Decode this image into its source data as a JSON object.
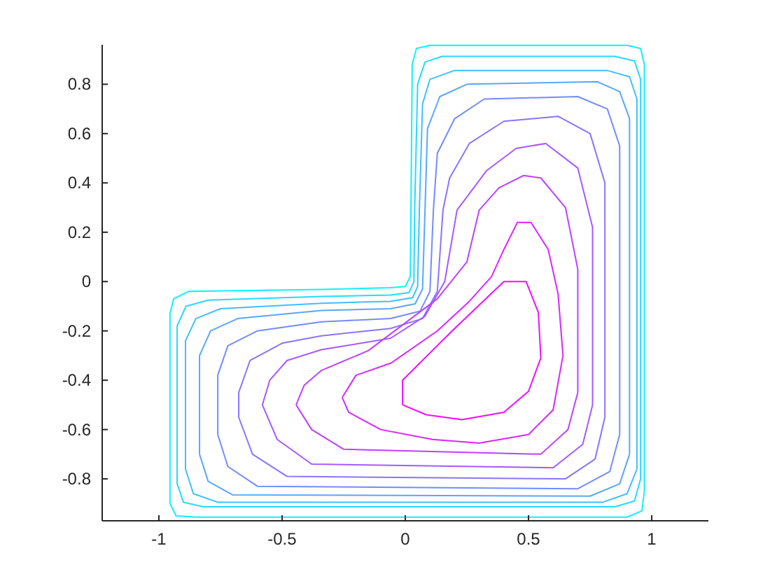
{
  "chart_data": {
    "type": "line",
    "xlim": [
      -1.23,
      1.23
    ],
    "ylim": [
      -0.97,
      0.96
    ],
    "xticks": [
      -1,
      -0.5,
      0,
      0.5,
      1
    ],
    "yticks": [
      -0.8,
      -0.6,
      -0.4,
      -0.2,
      0,
      0.2,
      0.4,
      0.6,
      0.8
    ],
    "series": [
      {
        "color": "#0df2ff",
        "x": [
          -0.955,
          -0.93,
          -0.85,
          0.9,
          0.96,
          0.97,
          null,
          -0.955,
          -0.955,
          -0.94,
          -0.88,
          -0.34,
          -0.06,
          0.0,
          0.02,
          0.023,
          0.028,
          0.045,
          0.1,
          0.9,
          0.955,
          0.97,
          0.97
        ],
        "values": [
          -0.9,
          -0.95,
          -0.955,
          -0.955,
          -0.93,
          -0.85,
          null,
          -0.9,
          -0.13,
          -0.07,
          -0.04,
          -0.032,
          -0.025,
          -0.02,
          0.02,
          0.29,
          0.88,
          0.945,
          0.958,
          0.958,
          0.945,
          0.88,
          -0.85
        ]
      },
      {
        "color": "#26d9ff",
        "x": [
          -0.926,
          -0.9,
          -0.82,
          0.85,
          0.93,
          0.955,
          null,
          -0.926,
          -0.926,
          -0.89,
          -0.8,
          -0.34,
          -0.06,
          0.015,
          0.035,
          0.038,
          0.05,
          0.08,
          0.15,
          0.85,
          0.93,
          0.955,
          0.955
        ],
        "values": [
          -0.82,
          -0.895,
          -0.913,
          -0.913,
          -0.89,
          -0.8,
          null,
          -0.82,
          -0.18,
          -0.1,
          -0.075,
          -0.06,
          -0.055,
          -0.045,
          0.0,
          0.29,
          0.8,
          0.89,
          0.913,
          0.913,
          0.895,
          0.82,
          -0.8
        ]
      },
      {
        "color": "#40bfff",
        "x": [
          -0.892,
          -0.86,
          -0.76,
          0.8,
          0.9,
          0.94,
          null,
          -0.892,
          -0.892,
          -0.85,
          -0.75,
          -0.34,
          -0.06,
          0.03,
          0.05,
          0.057,
          0.07,
          0.1,
          0.2,
          0.82,
          0.91,
          0.94,
          0.94
        ],
        "values": [
          -0.76,
          -0.86,
          -0.895,
          -0.895,
          -0.86,
          -0.76,
          null,
          -0.76,
          -0.24,
          -0.15,
          -0.11,
          -0.088,
          -0.08,
          -0.065,
          -0.02,
          0.29,
          0.72,
          0.82,
          0.856,
          0.856,
          0.83,
          0.74,
          -0.76
        ]
      },
      {
        "color": "#59a6ff",
        "x": [
          -0.835,
          -0.8,
          -0.7,
          0.75,
          0.87,
          0.91,
          null,
          -0.835,
          -0.835,
          -0.79,
          -0.68,
          -0.34,
          -0.06,
          0.04,
          0.07,
          0.08,
          0.09,
          0.14,
          0.25,
          0.78,
          0.87,
          0.91,
          0.91
        ],
        "values": [
          -0.7,
          -0.81,
          -0.865,
          -0.87,
          -0.82,
          -0.7,
          null,
          -0.7,
          -0.3,
          -0.2,
          -0.15,
          -0.117,
          -0.11,
          -0.09,
          -0.03,
          0.29,
          0.62,
          0.75,
          0.8,
          0.81,
          0.77,
          0.66,
          -0.7
        ]
      },
      {
        "color": "#738cff",
        "x": [
          -0.761,
          -0.72,
          -0.6,
          0.7,
          0.83,
          0.87,
          null,
          -0.761,
          -0.761,
          -0.72,
          -0.6,
          -0.34,
          -0.06,
          0.06,
          0.1,
          0.114,
          0.13,
          0.2,
          0.32,
          0.7,
          0.82,
          0.87,
          0.87
        ],
        "values": [
          -0.62,
          -0.75,
          -0.83,
          -0.84,
          -0.77,
          -0.62,
          null,
          -0.62,
          -0.38,
          -0.26,
          -0.2,
          -0.163,
          -0.15,
          -0.12,
          -0.04,
          0.29,
          0.52,
          0.66,
          0.74,
          0.75,
          0.7,
          0.55,
          -0.62
        ]
      },
      {
        "color": "#8c73ff",
        "x": [
          -0.676,
          -0.62,
          -0.48,
          0.65,
          0.77,
          0.81,
          null,
          -0.676,
          -0.676,
          -0.63,
          -0.5,
          -0.34,
          -0.06,
          0.07,
          0.13,
          0.153,
          0.18,
          0.26,
          0.4,
          0.62,
          0.75,
          0.81,
          0.81
        ],
        "values": [
          -0.55,
          -0.7,
          -0.79,
          -0.8,
          -0.72,
          -0.55,
          null,
          -0.55,
          -0.45,
          -0.32,
          -0.25,
          -0.22,
          -0.19,
          -0.15,
          -0.04,
          0.29,
          0.42,
          0.56,
          0.65,
          0.67,
          0.6,
          0.4,
          -0.55
        ]
      },
      {
        "color": "#a659ff",
        "x": [
          -0.58,
          -0.52,
          -0.38,
          0.6,
          0.72,
          0.76,
          null,
          -0.58,
          -0.55,
          -0.48,
          -0.34,
          -0.06,
          0.08,
          0.16,
          0.21,
          0.33,
          0.45,
          0.57,
          0.7,
          0.76,
          0.76
        ],
        "values": [
          -0.5,
          -0.64,
          -0.74,
          -0.755,
          -0.66,
          -0.5,
          null,
          -0.5,
          -0.4,
          -0.32,
          -0.276,
          -0.23,
          -0.14,
          0.0,
          0.29,
          0.45,
          0.54,
          0.56,
          0.46,
          0.22,
          -0.5
        ]
      },
      {
        "color": "#bf40ff",
        "x": [
          -0.443,
          -0.38,
          -0.25,
          0.55,
          0.66,
          0.7,
          null,
          -0.443,
          -0.41,
          -0.34,
          -0.15,
          0.13,
          0.25,
          0.3,
          0.38,
          0.48,
          0.55,
          0.65,
          0.7,
          0.7
        ],
        "values": [
          -0.5,
          -0.6,
          -0.68,
          -0.7,
          -0.6,
          -0.45,
          null,
          -0.5,
          -0.42,
          -0.36,
          -0.28,
          -0.07,
          0.08,
          0.29,
          0.38,
          0.43,
          0.42,
          0.3,
          0.05,
          -0.45
        ]
      },
      {
        "color": "#d926ff",
        "x": [
          -0.256,
          -0.23,
          -0.1,
          0.11,
          0.3,
          0.5,
          0.6,
          0.64,
          null,
          -0.256,
          -0.2,
          -0.057,
          0.13,
          0.26,
          0.35,
          0.4,
          0.455,
          0.51,
          0.58,
          0.62,
          0.64
        ],
        "values": [
          -0.47,
          -0.53,
          -0.6,
          -0.64,
          -0.655,
          -0.62,
          -0.52,
          -0.3,
          null,
          -0.47,
          -0.38,
          -0.33,
          -0.2,
          -0.08,
          0.02,
          0.13,
          0.24,
          0.24,
          0.13,
          -0.05,
          -0.3
        ]
      },
      {
        "color": "#f20dff",
        "x": [
          -0.011,
          0.085,
          0.23,
          0.4,
          0.5,
          0.55,
          null,
          -0.011,
          -0.011,
          0.19,
          0.4,
          0.49,
          0.54,
          0.55
        ],
        "values": [
          -0.5,
          -0.54,
          -0.56,
          -0.53,
          -0.445,
          -0.31,
          null,
          -0.5,
          -0.4,
          -0.2,
          0.0,
          0.0,
          -0.125,
          -0.31
        ]
      }
    ]
  }
}
